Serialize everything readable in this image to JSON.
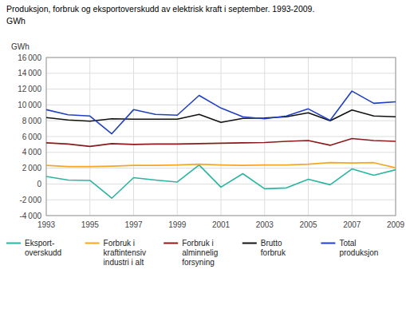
{
  "chart_data": {
    "type": "line",
    "title": "Produksjon, forbruk og eksportoverskudd av elektrisk kraft i september. 1993-2009.",
    "subtitle": "GWh",
    "y_label": "GWh",
    "x": [
      1993,
      1994,
      1995,
      1996,
      1997,
      1998,
      1999,
      2000,
      2001,
      2002,
      2003,
      2004,
      2005,
      2006,
      2007,
      2008,
      2009
    ],
    "xlim": [
      1993,
      2009
    ],
    "xticks": [
      1993,
      1995,
      1997,
      1999,
      2001,
      2003,
      2005,
      2007,
      2009
    ],
    "ylim": [
      -4000,
      16000
    ],
    "yticks": [
      {
        "value": -4000,
        "label": "-4 000"
      },
      {
        "value": -2000,
        "label": "-2 000"
      },
      0,
      {
        "value": 2000,
        "label": "2 000"
      },
      {
        "value": 4000,
        "label": "4 000"
      },
      {
        "value": 6000,
        "label": "6 000"
      },
      {
        "value": 8000,
        "label": "8 000"
      },
      {
        "value": 10000,
        "label": "10 000"
      },
      {
        "value": 12000,
        "label": "12 000"
      },
      {
        "value": 14000,
        "label": "14 000"
      },
      {
        "value": 16000,
        "label": "16 000"
      }
    ],
    "grid": true,
    "legend": "bottom",
    "series": [
      {
        "name": "Eksport-\noverskudd",
        "color": "#2ab5a0",
        "values": [
          950,
          500,
          450,
          -1800,
          800,
          500,
          250,
          2400,
          -400,
          1300,
          -600,
          -500,
          600,
          -100,
          1900,
          1100,
          1800
        ]
      },
      {
        "name": "Forbruk i\nkraftintensiv\nindustri i alt",
        "color": "#f5a623",
        "values": [
          2350,
          2200,
          2200,
          2250,
          2350,
          2350,
          2400,
          2500,
          2400,
          2350,
          2400,
          2400,
          2500,
          2700,
          2650,
          2700,
          2050
        ]
      },
      {
        "name": "Forbruk i\nalminnelig\nforsyning",
        "color": "#8b1a1a",
        "values": [
          5200,
          5050,
          4750,
          5100,
          5000,
          5050,
          5050,
          5100,
          5150,
          5200,
          5250,
          5400,
          5500,
          4900,
          5750,
          5500,
          5400
        ]
      },
      {
        "name": "Brutto\nforbruk",
        "color": "#111111",
        "values": [
          8400,
          8100,
          7950,
          8250,
          8200,
          8200,
          8200,
          8800,
          7800,
          8300,
          8350,
          8500,
          9000,
          8000,
          9350,
          8600,
          8500
        ]
      },
      {
        "name": "Total\nproduksjon",
        "color": "#2040c0",
        "values": [
          9400,
          8750,
          8600,
          6350,
          9400,
          8800,
          8700,
          11200,
          9600,
          8500,
          8250,
          8600,
          9500,
          8050,
          11750,
          10200,
          10400
        ]
      }
    ]
  }
}
